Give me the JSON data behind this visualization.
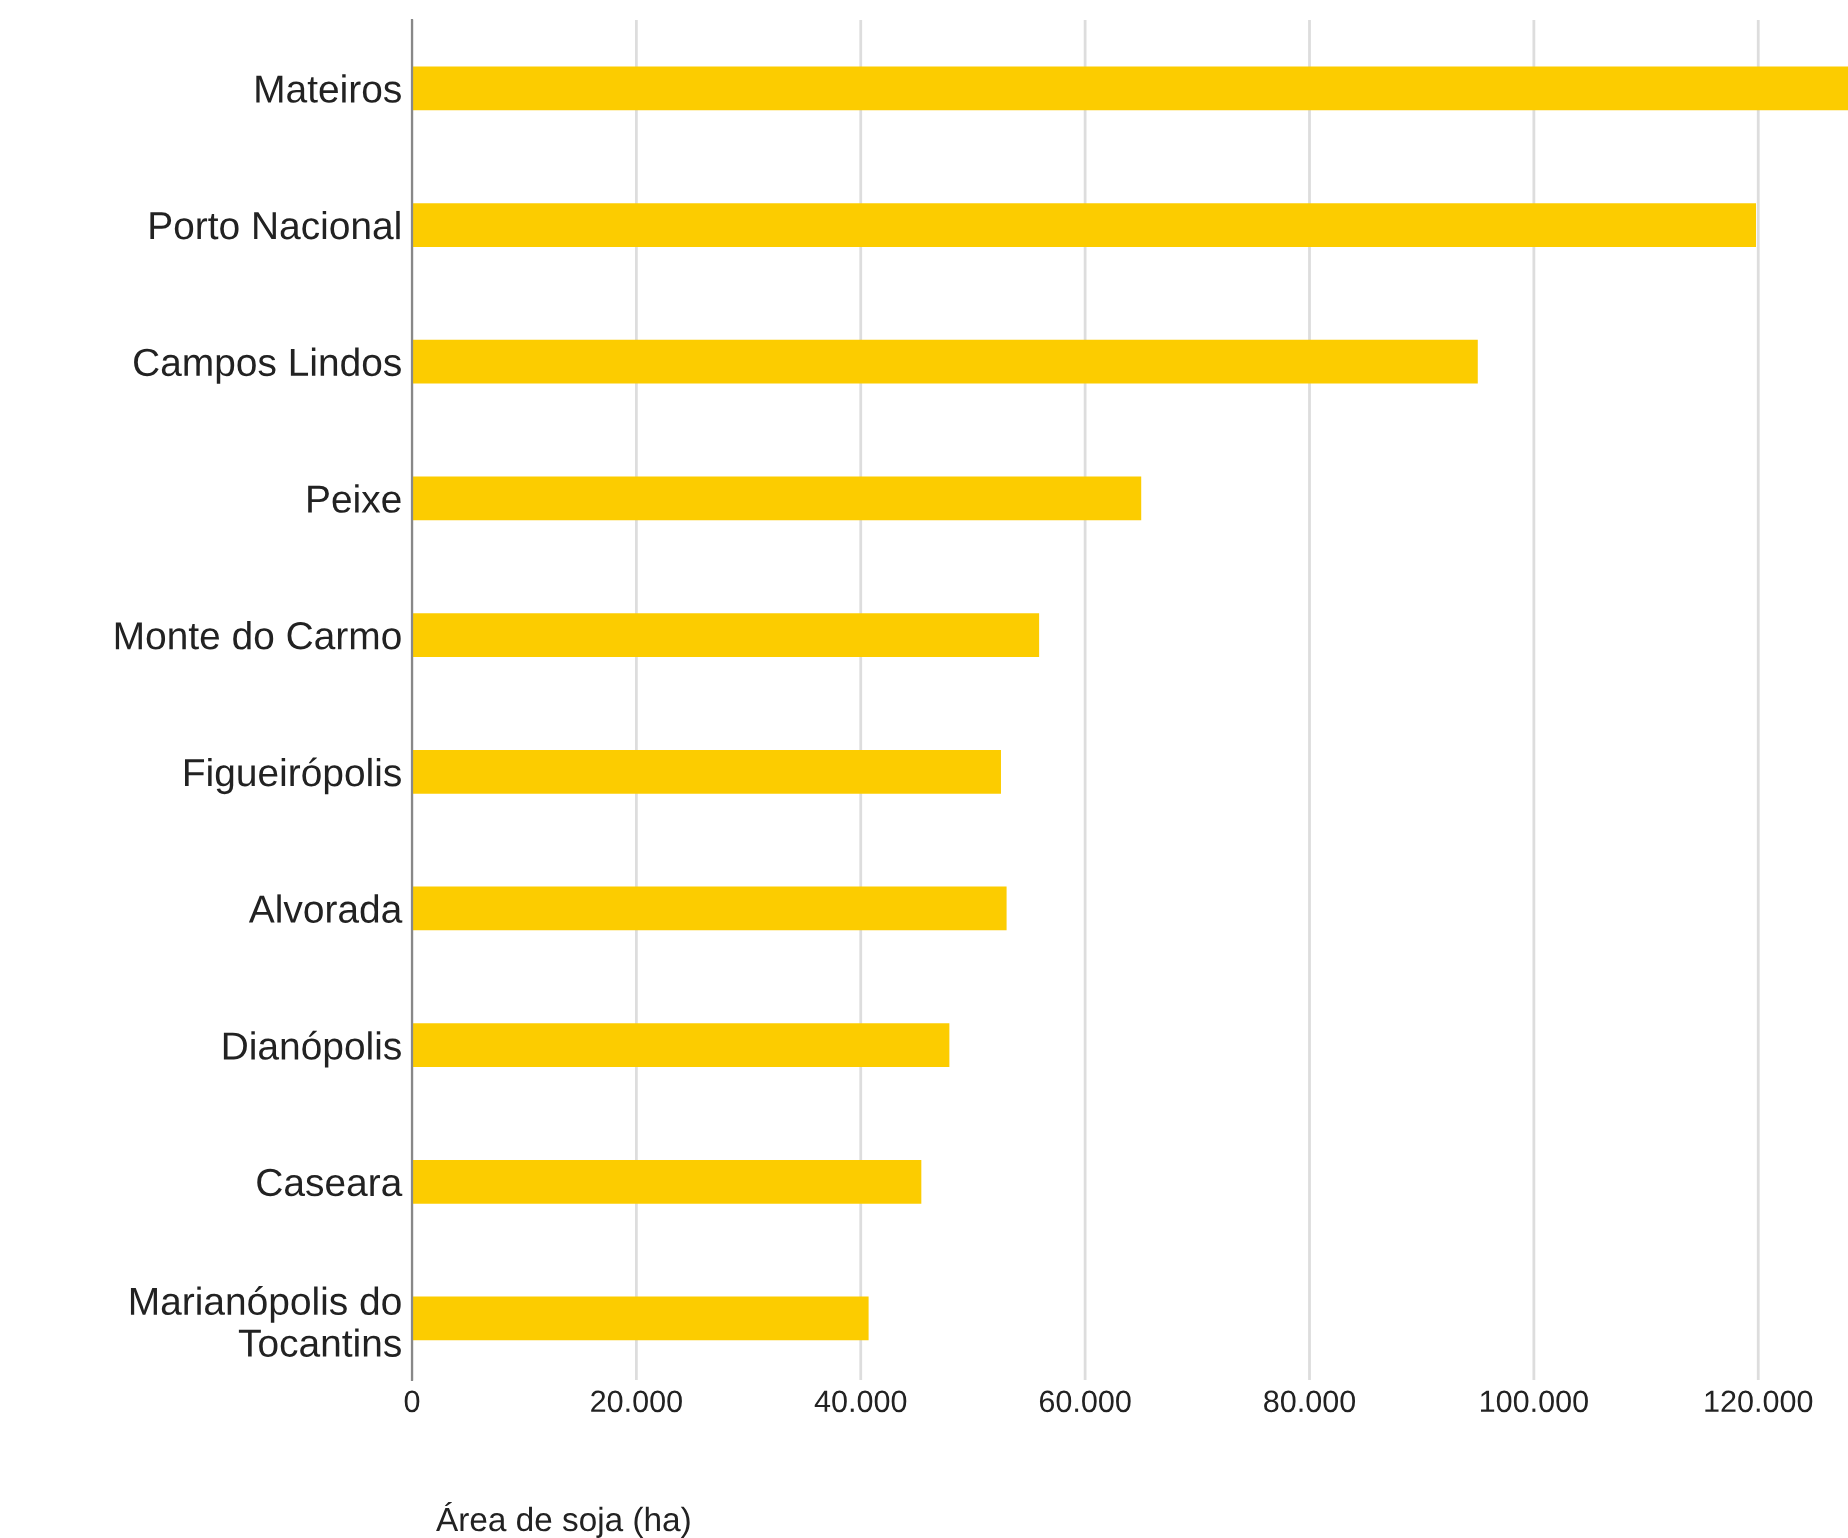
{
  "chart_data": {
    "type": "bar",
    "orientation": "horizontal",
    "xlabel": "Área de soja (ha)",
    "categories": [
      "Mateiros",
      "Porto Nacional",
      "Campos Lindos",
      "Peixe",
      "Monte do Carmo",
      "Figueirópolis",
      "Alvorada",
      "Dianópolis",
      "Caseara",
      "Marianópolis do\nTocantins"
    ],
    "values": [
      128000,
      119800,
      95000,
      65000,
      55900,
      52500,
      53000,
      47900,
      45400,
      40700
    ],
    "color": "#fccc00",
    "xlim": [
      0,
      128000
    ],
    "xticks": [
      0,
      {
        "value": 20000,
        "label": "20.000"
      },
      {
        "value": 40000,
        "label": "40.000"
      },
      {
        "value": 60000,
        "label": "60.000"
      },
      {
        "value": 80000,
        "label": "80.000"
      },
      {
        "value": 100000,
        "label": "100.000"
      },
      {
        "value": 120000,
        "label": "120.000"
      }
    ],
    "grid": "x"
  }
}
